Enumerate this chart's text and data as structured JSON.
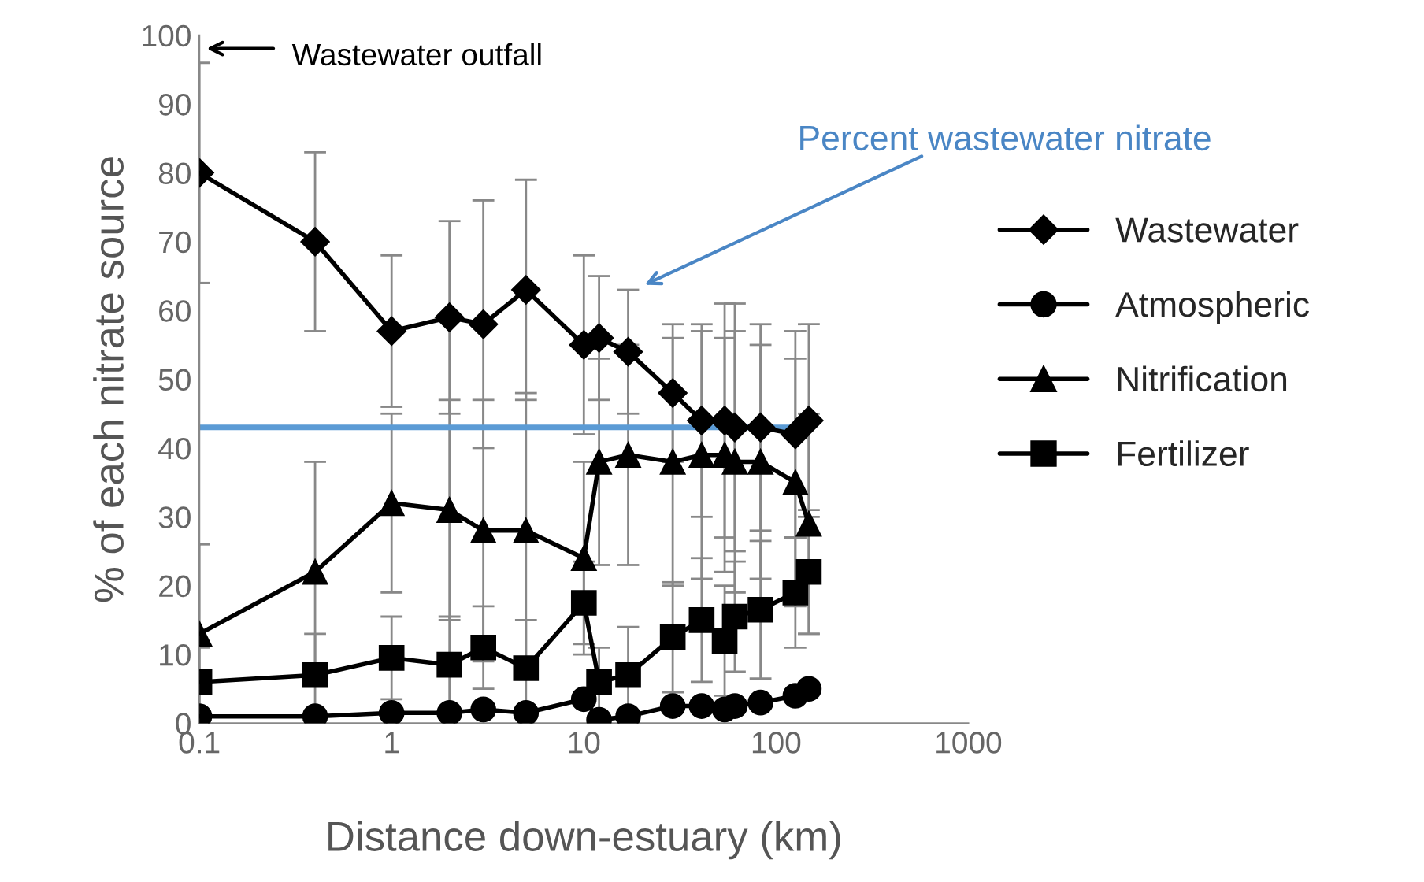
{
  "chart_data": {
    "type": "line",
    "xlabel": "Distance down-estuary (km)",
    "ylabel": "% of each nitrate source",
    "log": "x",
    "x": [
      0.1,
      0.4,
      1,
      2,
      3,
      5,
      10,
      12,
      17,
      29,
      41,
      54,
      61,
      83,
      126,
      148
    ],
    "series": [
      {
        "name": "Wastewater",
        "color": "#000000",
        "marker": "diamond",
        "values": [
          80,
          70,
          57,
          59,
          58,
          63,
          55,
          56,
          54,
          48,
          44,
          44,
          43,
          43,
          42,
          44
        ],
        "errors": [
          16,
          13,
          11,
          14,
          18,
          16,
          13,
          9,
          9,
          10,
          14,
          17,
          18,
          15,
          15,
          14
        ]
      },
      {
        "name": "Atmospheric",
        "color": "#000000",
        "marker": "circle",
        "values": [
          1,
          1,
          1.5,
          1.5,
          2,
          1.5,
          3.5,
          0.5,
          1,
          2.5,
          2.5,
          2,
          2.5,
          3,
          4,
          5
        ]
      },
      {
        "name": "Nitrification",
        "color": "#000000",
        "marker": "triangle",
        "values": [
          13,
          22,
          32,
          31,
          28,
          28,
          24,
          38,
          39,
          38,
          39,
          39,
          38,
          38,
          35,
          29
        ],
        "errors": [
          13,
          16,
          13,
          16,
          19,
          20,
          14,
          15,
          16,
          18,
          18,
          17,
          19,
          17,
          18,
          16
        ]
      },
      {
        "name": "Fertilizer",
        "color": "#000000",
        "marker": "square",
        "values": [
          6,
          7,
          9.5,
          8.5,
          11,
          8,
          17.5,
          6,
          7,
          12.5,
          15,
          12,
          15.5,
          16.5,
          19,
          22
        ],
        "errors": [
          5,
          6,
          6,
          7,
          6,
          7,
          6,
          5,
          7,
          8,
          9,
          8,
          8,
          10,
          8,
          9
        ]
      }
    ],
    "xlim": [
      0.1,
      1000
    ],
    "xticks": [
      0.1,
      1,
      10,
      100,
      1000
    ],
    "ylim": [
      0,
      100
    ],
    "yticks": [
      0,
      10,
      20,
      30,
      40,
      50,
      60,
      70,
      80,
      90,
      100
    ],
    "ref_lines": [
      {
        "axis": "y",
        "value": 43,
        "color": "#5b9bd5"
      }
    ],
    "annotations": [
      "Wastewater outfall",
      "Percent wastewater nitrate"
    ],
    "grid": false,
    "legend": "right"
  }
}
